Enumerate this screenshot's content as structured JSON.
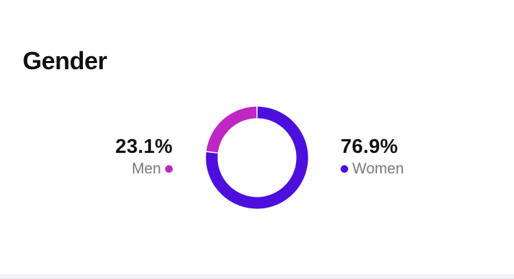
{
  "title": "Gender",
  "chart_data": {
    "type": "pie",
    "style": "donut",
    "categories": [
      "Men",
      "Women"
    ],
    "values": [
      23.1,
      76.9
    ],
    "value_labels": [
      "23.1%",
      "76.9%"
    ],
    "colors": [
      "#c026c4",
      "#4c0fdd"
    ],
    "legend_placement": "beside"
  },
  "men": {
    "percent": "23.1%",
    "label": "Men",
    "color": "#c026c4"
  },
  "women": {
    "percent": "76.9%",
    "label": "Women",
    "color": "#4c0fdd"
  }
}
